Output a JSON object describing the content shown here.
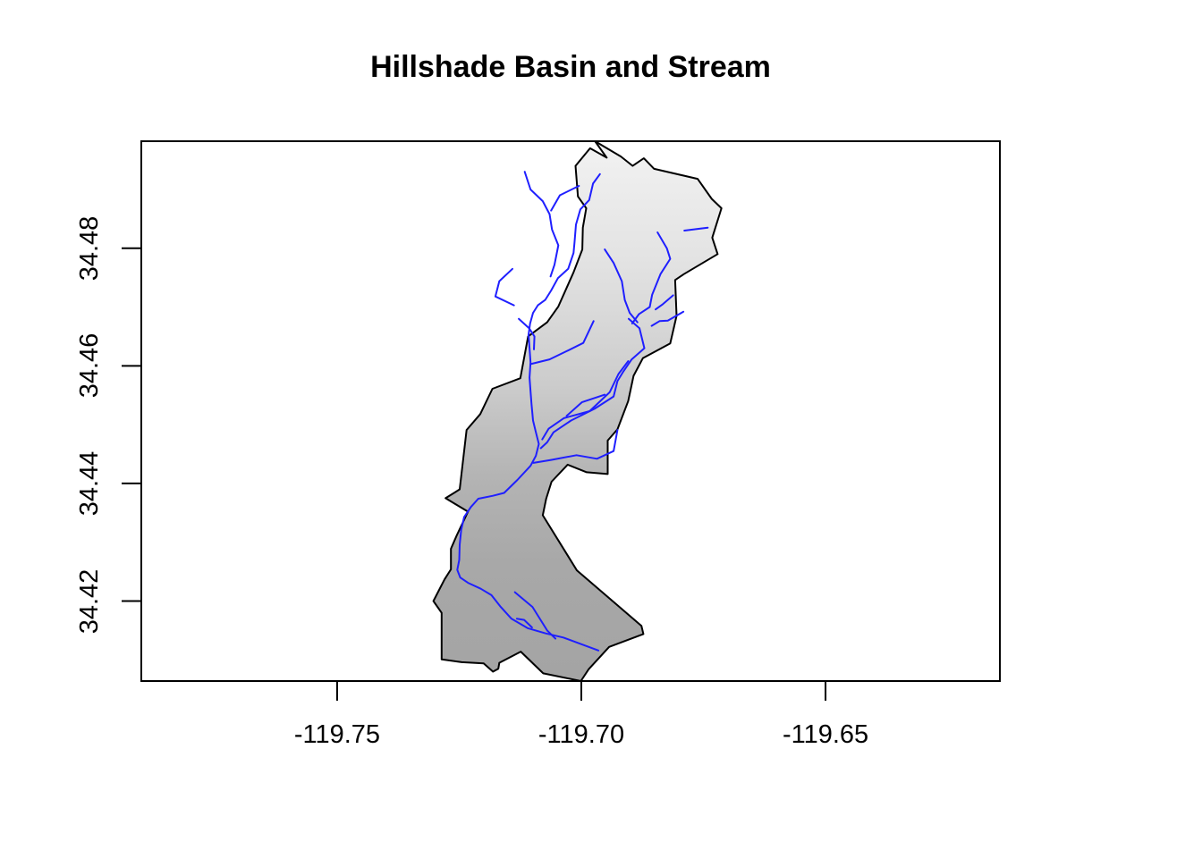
{
  "chart_data": {
    "type": "map",
    "title": "Hillshade Basin and Stream",
    "xlim": [
      -119.7901,
      -119.6143
    ],
    "ylim": [
      34.4064,
      34.4982
    ],
    "x_ticks": [
      {
        "value": -119.75,
        "label": "-119.75"
      },
      {
        "value": -119.7,
        "label": "-119.70"
      },
      {
        "value": -119.65,
        "label": "-119.65"
      }
    ],
    "y_ticks": [
      {
        "value": 34.42,
        "label": "34.42"
      },
      {
        "value": 34.44,
        "label": "34.44"
      },
      {
        "value": 34.46,
        "label": "34.46"
      },
      {
        "value": 34.48,
        "label": "34.48"
      }
    ],
    "basin_boundary": [
      [
        -119.6972,
        34.4982
      ],
      [
        -119.6919,
        34.4956
      ],
      [
        -119.6895,
        34.494
      ],
      [
        -119.6872,
        34.4953
      ],
      [
        -119.6851,
        34.4935
      ],
      [
        -119.6762,
        34.4918
      ],
      [
        -119.6733,
        34.4884
      ],
      [
        -119.6713,
        34.4868
      ],
      [
        -119.6732,
        34.4818
      ],
      [
        -119.6721,
        34.479
      ],
      [
        -119.679,
        34.4756
      ],
      [
        -119.6808,
        34.4746
      ],
      [
        -119.6805,
        34.4685
      ],
      [
        -119.6818,
        34.4638
      ],
      [
        -119.6874,
        34.4613
      ],
      [
        -119.6893,
        34.4583
      ],
      [
        -119.6904,
        34.454
      ],
      [
        -119.6926,
        34.4492
      ],
      [
        -119.6946,
        34.4473
      ],
      [
        -119.6946,
        34.4416
      ],
      [
        -119.6989,
        34.4419
      ],
      [
        -119.7028,
        34.4432
      ],
      [
        -119.7061,
        34.4403
      ],
      [
        -119.7072,
        34.4374
      ],
      [
        -119.7079,
        34.4346
      ],
      [
        -119.7009,
        34.4252
      ],
      [
        -119.6877,
        34.4158
      ],
      [
        -119.6873,
        34.4144
      ],
      [
        -119.6943,
        34.4122
      ],
      [
        -119.6985,
        34.4084
      ],
      [
        -119.7001,
        34.4064
      ],
      [
        -119.7078,
        34.4077
      ],
      [
        -119.7124,
        34.4114
      ],
      [
        -119.7168,
        34.4095
      ],
      [
        -119.717,
        34.4085
      ],
      [
        -119.7181,
        34.408
      ],
      [
        -119.72,
        34.4094
      ],
      [
        -119.7245,
        34.4096
      ],
      [
        -119.7286,
        34.4101
      ],
      [
        -119.7286,
        34.418
      ],
      [
        -119.7303,
        34.42
      ],
      [
        -119.728,
        34.4237
      ],
      [
        -119.7267,
        34.4254
      ],
      [
        -119.7267,
        34.4289
      ],
      [
        -119.7255,
        34.4312
      ],
      [
        -119.7232,
        34.4352
      ],
      [
        -119.7278,
        34.4375
      ],
      [
        -119.7249,
        34.439
      ],
      [
        -119.7235,
        34.4491
      ],
      [
        -119.7207,
        34.4518
      ],
      [
        -119.7182,
        34.4561
      ],
      [
        -119.7125,
        34.4579
      ],
      [
        -119.7109,
        34.465
      ],
      [
        -119.707,
        34.4674
      ],
      [
        -119.7047,
        34.4701
      ],
      [
        -119.7016,
        34.4759
      ],
      [
        -119.6998,
        34.4798
      ],
      [
        -119.6997,
        34.4835
      ],
      [
        -119.699,
        34.4868
      ],
      [
        -119.7007,
        34.4888
      ],
      [
        -119.7012,
        34.494
      ],
      [
        -119.6982,
        34.497
      ],
      [
        -119.6948,
        34.4954
      ],
      [
        -119.6972,
        34.4982
      ]
    ],
    "streams": [
      [
        [
          -119.6962,
          34.4926
        ],
        [
          -119.6976,
          34.491
        ],
        [
          -119.6984,
          34.4882
        ],
        [
          -119.7002,
          34.4866
        ],
        [
          -119.7011,
          34.484
        ],
        [
          -119.7014,
          34.481
        ],
        [
          -119.7016,
          34.4792
        ],
        [
          -119.7027,
          34.4765
        ],
        [
          -119.7048,
          34.4749
        ],
        [
          -119.7062,
          34.4728
        ],
        [
          -119.7074,
          34.4712
        ],
        [
          -119.7089,
          34.4703
        ],
        [
          -119.7099,
          34.469
        ],
        [
          -119.7105,
          34.4672
        ],
        [
          -119.7108,
          34.4653
        ],
        [
          -119.7106,
          34.463
        ],
        [
          -119.7104,
          34.4606
        ],
        [
          -119.7106,
          34.458
        ],
        [
          -119.7104,
          34.4557
        ],
        [
          -119.7102,
          34.4535
        ],
        [
          -119.7099,
          34.4507
        ],
        [
          -119.7093,
          34.4487
        ],
        [
          -119.7087,
          34.4467
        ],
        [
          -119.7093,
          34.4447
        ],
        [
          -119.7104,
          34.443
        ],
        [
          -119.7131,
          34.4406
        ],
        [
          -119.7158,
          34.4384
        ],
        [
          -119.7181,
          34.4379
        ],
        [
          -119.7211,
          34.4374
        ],
        [
          -119.7226,
          34.436
        ],
        [
          -119.724,
          34.4343
        ],
        [
          -119.7246,
          34.4321
        ],
        [
          -119.7249,
          34.4296
        ],
        [
          -119.725,
          34.427
        ],
        [
          -119.7254,
          34.4253
        ],
        [
          -119.7248,
          34.424
        ],
        [
          -119.7232,
          34.4231
        ],
        [
          -119.7206,
          34.4221
        ],
        [
          -119.7184,
          34.421
        ],
        [
          -119.7165,
          34.419
        ],
        [
          -119.7143,
          34.417
        ],
        [
          -119.711,
          34.4154
        ],
        [
          -119.7073,
          34.4145
        ],
        [
          -119.7037,
          34.4138
        ],
        [
          -119.7004,
          34.4128
        ],
        [
          -119.6965,
          34.4116
        ]
      ],
      [
        [
          -119.7116,
          34.493
        ],
        [
          -119.7104,
          34.49
        ],
        [
          -119.7079,
          34.488
        ],
        [
          -119.7065,
          34.4858
        ],
        [
          -119.706,
          34.4832
        ],
        [
          -119.7047,
          34.4805
        ],
        [
          -119.7055,
          34.4772
        ],
        [
          -119.7063,
          34.4752
        ]
      ],
      [
        [
          -119.7005,
          34.4906
        ],
        [
          -119.7044,
          34.489
        ],
        [
          -119.7062,
          34.4864
        ]
      ],
      [
        [
          -119.6952,
          34.4798
        ],
        [
          -119.6934,
          34.4775
        ],
        [
          -119.6917,
          34.4744
        ],
        [
          -119.6911,
          34.4712
        ],
        [
          -119.6901,
          34.469
        ],
        [
          -119.6885,
          34.4674
        ]
      ],
      [
        [
          -119.6903,
          34.468
        ],
        [
          -119.6881,
          34.4664
        ],
        [
          -119.6871,
          34.463
        ],
        [
          -119.6897,
          34.4611
        ],
        [
          -119.6915,
          34.4589
        ],
        [
          -119.6926,
          34.4574
        ],
        [
          -119.6934,
          34.4548
        ],
        [
          -119.6973,
          34.4527
        ],
        [
          -119.7021,
          34.4507
        ],
        [
          -119.7057,
          34.4487
        ],
        [
          -119.707,
          34.447
        ],
        [
          -119.7083,
          34.446
        ]
      ],
      [
        [
          -119.6844,
          34.4827
        ],
        [
          -119.6825,
          34.48
        ],
        [
          -119.6818,
          34.4782
        ],
        [
          -119.6838,
          34.4756
        ],
        [
          -119.6855,
          34.4721
        ],
        [
          -119.686,
          34.47
        ],
        [
          -119.6882,
          34.4688
        ],
        [
          -119.6896,
          34.4672
        ]
      ],
      [
        [
          -119.6789,
          34.483
        ],
        [
          -119.6741,
          34.4835
        ]
      ],
      [
        [
          -119.6812,
          34.472
        ],
        [
          -119.6833,
          34.4705
        ],
        [
          -119.6848,
          34.4696
        ]
      ],
      [
        [
          -119.6791,
          34.4692
        ],
        [
          -119.6823,
          34.4677
        ],
        [
          -119.684,
          34.4676
        ],
        [
          -119.6856,
          34.4668
        ]
      ],
      [
        [
          -119.7141,
          34.4765
        ],
        [
          -119.7168,
          34.4744
        ],
        [
          -119.7176,
          34.4718
        ],
        [
          -119.7138,
          34.4703
        ]
      ],
      [
        [
          -119.7128,
          34.468
        ],
        [
          -119.7107,
          34.4664
        ],
        [
          -119.7096,
          34.465
        ],
        [
          -119.7097,
          34.4628
        ]
      ],
      [
        [
          -119.6975,
          34.4676
        ],
        [
          -119.6996,
          34.4639
        ],
        [
          -119.703,
          34.4625
        ],
        [
          -119.7065,
          34.4611
        ],
        [
          -119.7104,
          34.4603
        ]
      ],
      [
        [
          -119.6904,
          34.4608
        ],
        [
          -119.6924,
          34.4586
        ],
        [
          -119.6942,
          34.4555
        ],
        [
          -119.6983,
          34.4523
        ],
        [
          -119.7036,
          34.4511
        ],
        [
          -119.7067,
          34.4493
        ],
        [
          -119.708,
          34.4475
        ]
      ],
      [
        [
          -119.6952,
          34.4551
        ],
        [
          -119.6999,
          34.4538
        ],
        [
          -119.703,
          34.4515
        ]
      ],
      [
        [
          -119.6926,
          34.4491
        ],
        [
          -119.6934,
          34.4455
        ],
        [
          -119.6968,
          34.4442
        ],
        [
          -119.701,
          34.4448
        ],
        [
          -119.7062,
          34.444
        ],
        [
          -119.7098,
          34.4435
        ]
      ],
      [
        [
          -119.7136,
          34.4215
        ],
        [
          -119.71,
          34.419
        ],
        [
          -119.707,
          34.415
        ],
        [
          -119.7053,
          34.4136
        ]
      ],
      [
        [
          -119.7132,
          34.417
        ],
        [
          -119.7117,
          34.4168
        ],
        [
          -119.7101,
          34.4155
        ]
      ]
    ],
    "legend": []
  }
}
